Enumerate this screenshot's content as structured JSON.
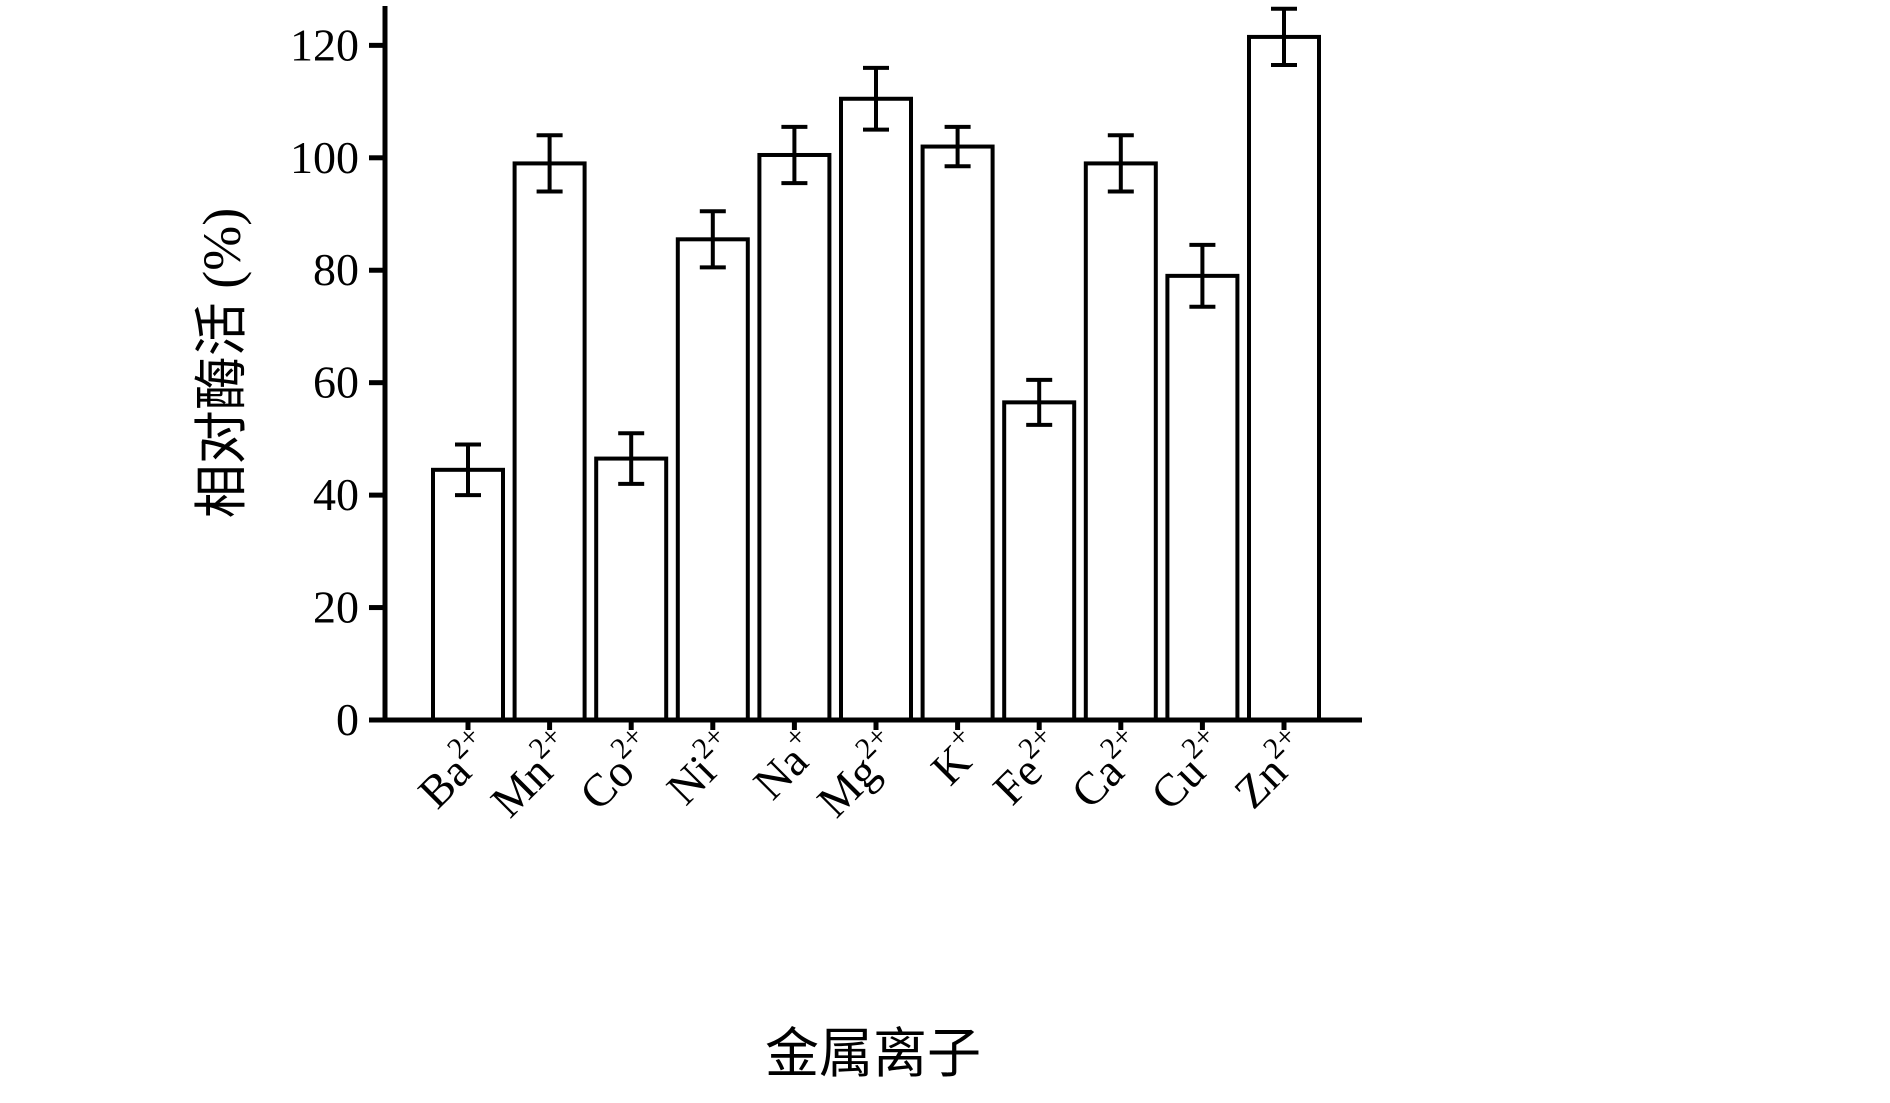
{
  "page": {
    "background": "#ffffff",
    "axis_color": "#000000"
  },
  "chart_data": {
    "type": "bar",
    "title": "",
    "xlabel": "金属离子",
    "ylabel": "相对酶活 (%)",
    "ylim": [
      0,
      127
    ],
    "yticks": [
      0,
      20,
      40,
      60,
      80,
      100,
      120
    ],
    "grid": false,
    "legend": null,
    "bar_fill": "#ffffff",
    "bar_stroke": "#000000",
    "error_bars": true,
    "categories": [
      {
        "ion": "Ba",
        "charge": "2+"
      },
      {
        "ion": "Mn",
        "charge": "2+"
      },
      {
        "ion": "Co",
        "charge": "2+"
      },
      {
        "ion": "Ni",
        "charge": "2+"
      },
      {
        "ion": "Na",
        "charge": "+"
      },
      {
        "ion": "Mg",
        "charge": "2+"
      },
      {
        "ion": "K",
        "charge": "+"
      },
      {
        "ion": "Fe",
        "charge": "2+"
      },
      {
        "ion": "Ca",
        "charge": "2+"
      },
      {
        "ion": "Cu",
        "charge": "2+"
      },
      {
        "ion": "Zn",
        "charge": "2+"
      }
    ],
    "values": [
      44.5,
      99,
      46.5,
      85.5,
      100.5,
      110.5,
      102,
      56.5,
      99,
      79,
      121.5
    ],
    "errors": [
      4.5,
      5,
      4.5,
      5,
      5,
      5.5,
      3.5,
      4,
      5,
      5.5,
      5
    ]
  }
}
